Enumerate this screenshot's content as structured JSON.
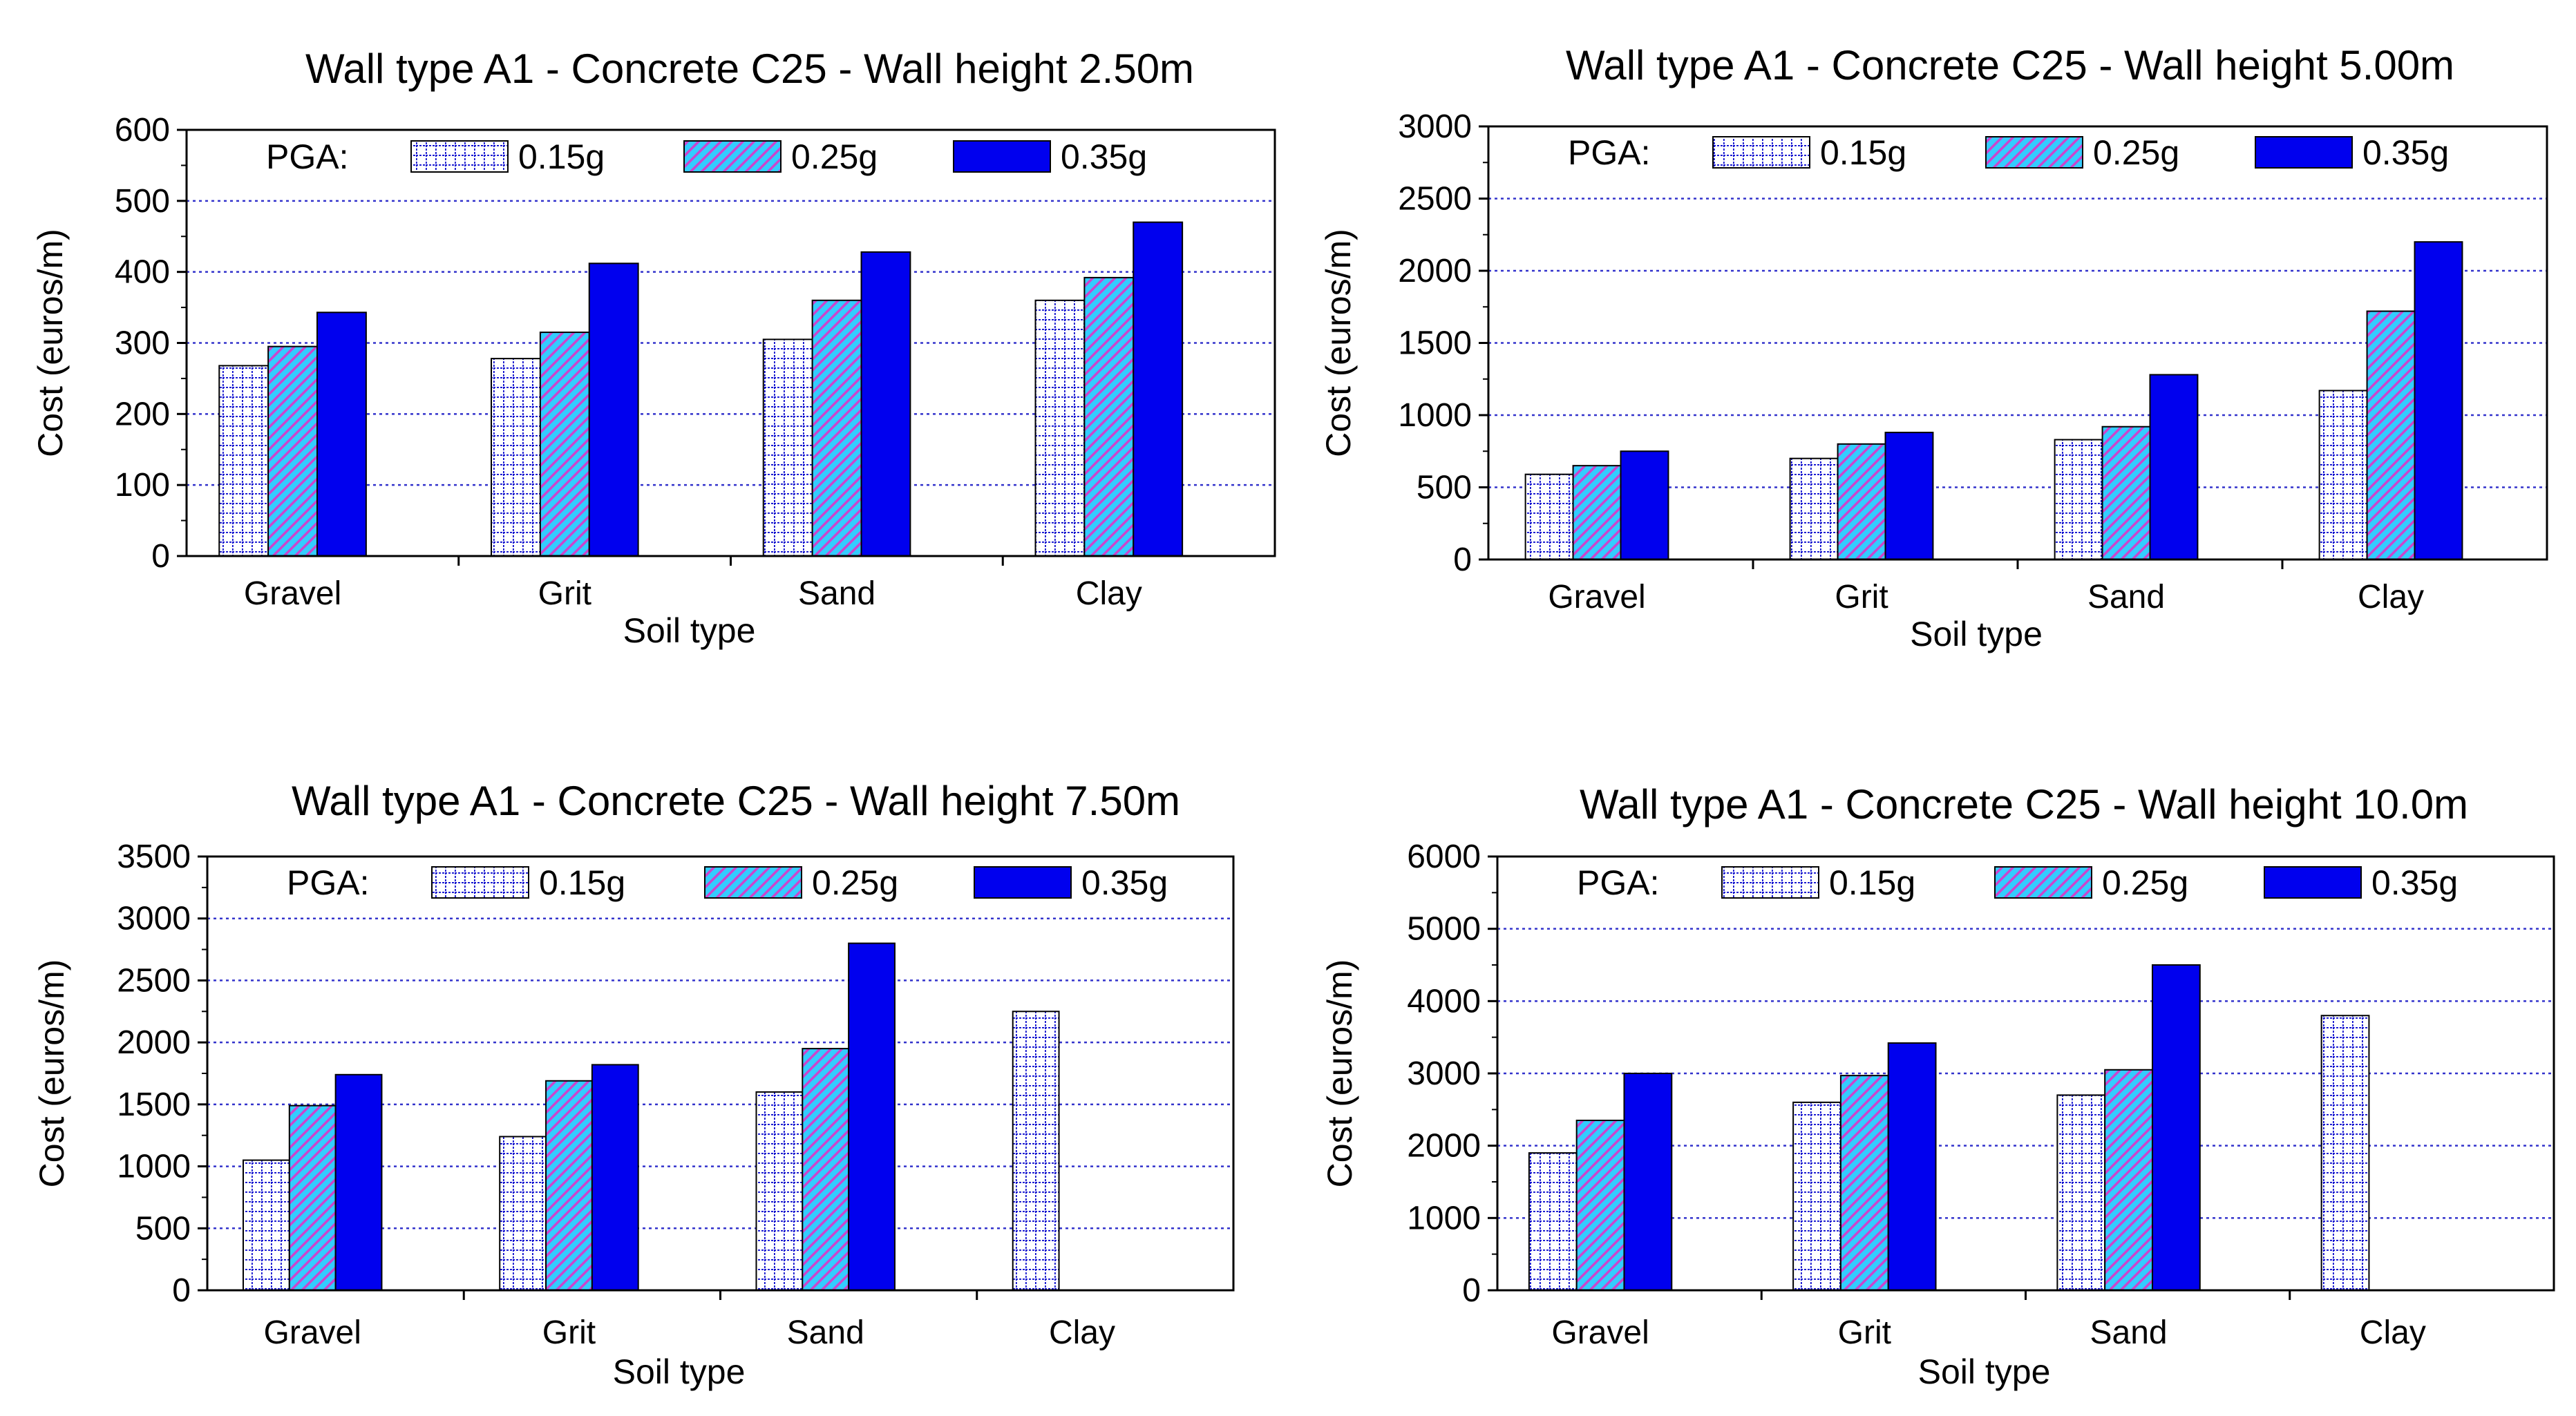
{
  "colors": {
    "pattern_015g": "#0000cc",
    "pattern_025g_fill": "#33ccff",
    "pattern_025g_stripe": "#cc44cc",
    "solid_035g": "#0000ee",
    "grid": "#3333cc"
  },
  "chart_data": [
    {
      "type": "bar",
      "title": "Wall type A1 - Concrete C25 - Wall height 2.50m",
      "xlabel": "Soil type",
      "ylabel": "Cost (euros/m)",
      "categories": [
        "Gravel",
        "Grit",
        "Sand",
        "Clay"
      ],
      "legend_title": "PGA:",
      "series": [
        {
          "name": "0.15g",
          "values": [
            268,
            278,
            305,
            360
          ]
        },
        {
          "name": "0.25g",
          "values": [
            295,
            315,
            360,
            392
          ]
        },
        {
          "name": "0.35g",
          "values": [
            343,
            412,
            428,
            470
          ]
        }
      ],
      "ylim": [
        0,
        600
      ],
      "yticks": [
        "0",
        "100",
        "200",
        "300",
        "400",
        "500",
        "600"
      ],
      "grid": true,
      "legend": "top-left"
    },
    {
      "type": "bar",
      "title": "Wall type A1 - Concrete C25 - Wall height 5.00m",
      "xlabel": "Soil type",
      "ylabel": "Cost (euros/m)",
      "categories": [
        "Gravel",
        "Grit",
        "Sand",
        "Clay"
      ],
      "legend_title": "PGA:",
      "series": [
        {
          "name": "0.15g",
          "values": [
            590,
            700,
            830,
            1170
          ]
        },
        {
          "name": "0.25g",
          "values": [
            650,
            800,
            920,
            1720
          ]
        },
        {
          "name": "0.35g",
          "values": [
            750,
            880,
            1280,
            2200
          ]
        }
      ],
      "ylim": [
        0,
        3000
      ],
      "yticks": [
        "0",
        "500",
        "1000",
        "1500",
        "2000",
        "2500",
        "3000"
      ],
      "grid": true,
      "legend": "top-left"
    },
    {
      "type": "bar",
      "title": "Wall type A1 - Concrete C25 - Wall height 7.50m",
      "xlabel": "Soil type",
      "ylabel": "Cost (euros/m)",
      "categories": [
        "Gravel",
        "Grit",
        "Sand",
        "Clay"
      ],
      "legend_title": "PGA:",
      "series": [
        {
          "name": "0.15g",
          "values": [
            1050,
            1240,
            1600,
            2250
          ]
        },
        {
          "name": "0.25g",
          "values": [
            1490,
            1690,
            1950,
            null
          ]
        },
        {
          "name": "0.35g",
          "values": [
            1740,
            1820,
            2800,
            null
          ]
        }
      ],
      "ylim": [
        0,
        3500
      ],
      "yticks": [
        "0",
        "500",
        "1000",
        "1500",
        "2000",
        "2500",
        "3000",
        "3500"
      ],
      "grid": true,
      "legend": "top-left"
    },
    {
      "type": "bar",
      "title": "Wall type A1 - Concrete C25 - Wall height 10.0m",
      "xlabel": "Soil type",
      "ylabel": "Cost (euros/m)",
      "categories": [
        "Gravel",
        "Grit",
        "Sand",
        "Clay"
      ],
      "legend_title": "PGA:",
      "series": [
        {
          "name": "0.15g",
          "values": [
            1900,
            2600,
            2700,
            3800
          ]
        },
        {
          "name": "0.25g",
          "values": [
            2350,
            2970,
            3050,
            null
          ]
        },
        {
          "name": "0.35g",
          "values": [
            3000,
            3420,
            4500,
            null
          ]
        }
      ],
      "ylim": [
        0,
        6000
      ],
      "yticks": [
        "0",
        "1000",
        "2000",
        "3000",
        "4000",
        "5000",
        "6000"
      ],
      "grid": true,
      "legend": "top-left"
    }
  ]
}
